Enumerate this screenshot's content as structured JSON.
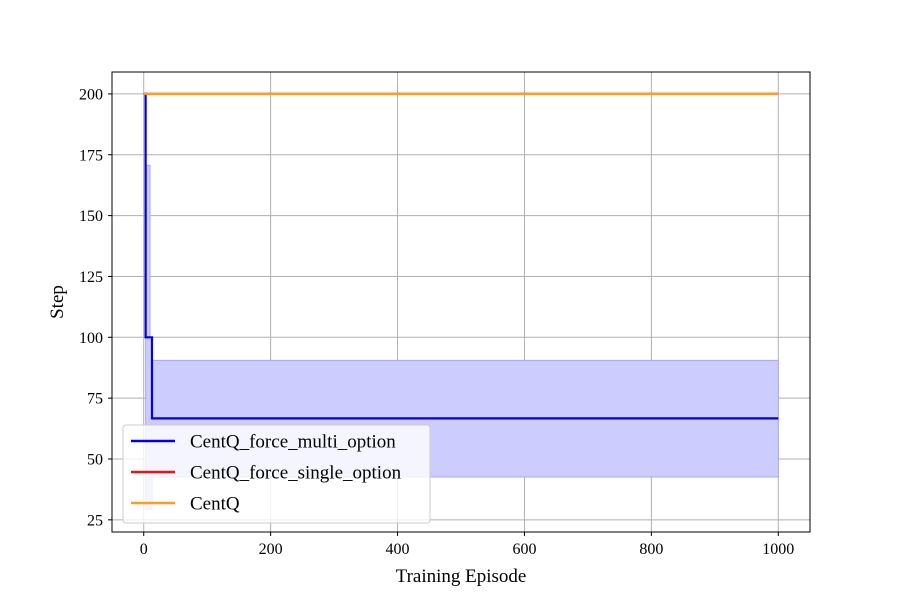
{
  "chart_data": {
    "type": "line",
    "title": "",
    "xlabel": "Training Episode",
    "ylabel": "Step",
    "xlim": [
      -50,
      1050
    ],
    "ylim": [
      20,
      209
    ],
    "xticks": [
      0,
      200,
      400,
      600,
      800,
      1000
    ],
    "yticks": [
      25,
      50,
      75,
      100,
      125,
      150,
      175,
      200
    ],
    "grid": true,
    "legend_position": "lower-left",
    "series": [
      {
        "name": "CentQ_force_multi_option",
        "color": "#0000ee",
        "x": [
          0,
          3,
          3,
          10,
          10,
          13,
          13,
          1000
        ],
        "y": [
          200,
          200,
          100,
          100,
          100,
          100,
          66.7,
          66.7
        ],
        "band": {
          "color": "#ccccff",
          "x": [
            0,
            3,
            3,
            10,
            10,
            13,
            13,
            1000
          ],
          "upper": [
            200,
            200,
            170.7,
            170.7,
            100,
            100,
            90.5,
            90.5
          ],
          "lower": [
            200,
            200,
            29.3,
            29.3,
            29.3,
            29.3,
            42.6,
            42.6
          ]
        }
      },
      {
        "name": "CentQ_force_single_option",
        "color": "#ee1111",
        "x": [
          0,
          1000
        ],
        "y": [
          200,
          200
        ]
      },
      {
        "name": "CentQ",
        "color": "#ff9d1c",
        "x": [
          0,
          1000
        ],
        "y": [
          200,
          200
        ]
      }
    ]
  }
}
